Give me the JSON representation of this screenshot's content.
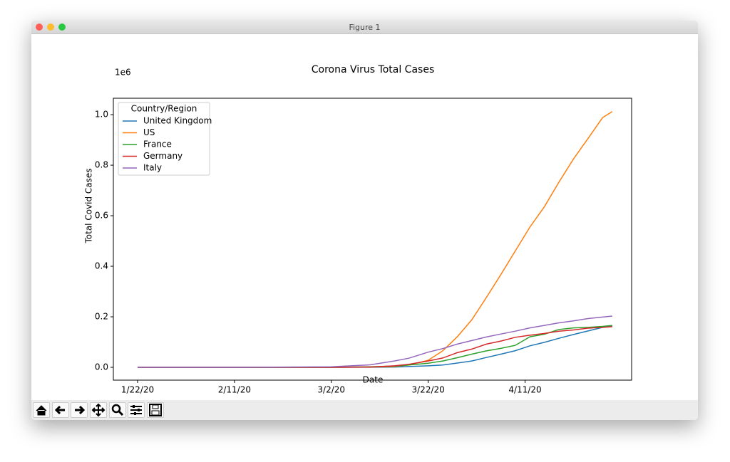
{
  "window_title": "Figure 1",
  "chart_data": {
    "type": "line",
    "title": "Corona Virus Total Cases",
    "x_label": "Date",
    "y_label": "Total Covid Cases",
    "y_offset_label": "1e6",
    "legend_title": "Country/Region",
    "legend": "upper left",
    "grid": false,
    "x": [
      "1/22/20",
      "2/11/20",
      "3/2/20",
      "3/10/20",
      "3/15/20",
      "3/18/20",
      "3/22/20",
      "3/25/20",
      "3/28/20",
      "3/31/20",
      "4/3/20",
      "4/6/20",
      "4/9/20",
      "4/12/20",
      "4/15/20",
      "4/18/20",
      "4/21/20",
      "4/24/20",
      "4/27/20",
      "4/29/20"
    ],
    "xlim": [
      "1/17/20",
      "5/3/20"
    ],
    "xticks": [
      "1/22/20",
      "2/11/20",
      "3/2/20",
      "3/22/20",
      "4/11/20"
    ],
    "ylim": [
      -0.0507,
      1.065
    ],
    "yticks": [
      {
        "value": 0,
        "label": "0.0"
      },
      0.2,
      0.4,
      0.6,
      0.8,
      {
        "value": 1,
        "label": "1.0"
      }
    ],
    "series": [
      {
        "name": "United Kingdom",
        "color": "#1f77b4",
        "values": [
          0,
          0,
          0,
          0.0004,
          0.001,
          0.003,
          0.006,
          0.009,
          0.017,
          0.025,
          0.039,
          0.052,
          0.066,
          0.085,
          0.099,
          0.115,
          0.13,
          0.144,
          0.158,
          0.163
        ]
      },
      {
        "name": "US",
        "color": "#ff7f0e",
        "values": [
          0,
          0,
          0,
          0.001,
          0.003,
          0.009,
          0.028,
          0.065,
          0.121,
          0.188,
          0.276,
          0.367,
          0.461,
          0.555,
          0.636,
          0.733,
          0.825,
          0.906,
          0.988,
          1.012
        ]
      },
      {
        "name": "France",
        "color": "#2ca02c",
        "values": [
          0,
          0,
          0,
          0.002,
          0.005,
          0.009,
          0.016,
          0.025,
          0.038,
          0.052,
          0.065,
          0.075,
          0.087,
          0.121,
          0.131,
          0.15,
          0.156,
          0.158,
          0.162,
          0.166
        ]
      },
      {
        "name": "Germany",
        "color": "#d62728",
        "values": [
          0,
          0,
          0,
          0.001,
          0.006,
          0.012,
          0.025,
          0.037,
          0.058,
          0.072,
          0.092,
          0.104,
          0.119,
          0.127,
          0.134,
          0.143,
          0.148,
          0.155,
          0.158,
          0.161
        ]
      },
      {
        "name": "Italy",
        "color": "#9467bd",
        "values": [
          0,
          0,
          0.002,
          0.01,
          0.025,
          0.036,
          0.06,
          0.074,
          0.092,
          0.106,
          0.12,
          0.132,
          0.143,
          0.156,
          0.166,
          0.176,
          0.184,
          0.193,
          0.199,
          0.203
        ]
      }
    ]
  }
}
